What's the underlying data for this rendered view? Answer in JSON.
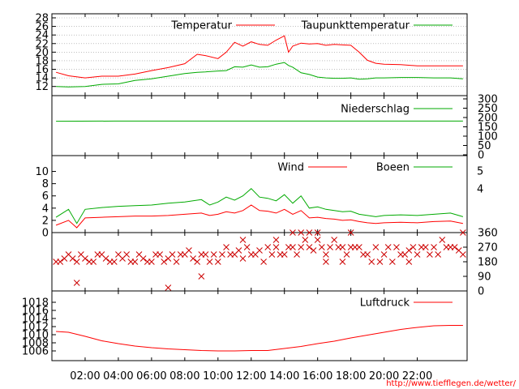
{
  "chart_data": [
    {
      "type": "line",
      "panel": "temperature",
      "ylim": [
        11,
        28
      ],
      "yticks": [
        12,
        14,
        16,
        18,
        20,
        22,
        24,
        26,
        28
      ],
      "grid": "horizontal dotted",
      "legend_position": "top",
      "x": [
        0.25,
        1,
        2,
        3,
        4,
        5,
        6,
        7,
        8,
        8.75,
        9.25,
        10,
        10.5,
        11,
        11.5,
        12,
        12.5,
        13,
        13.5,
        14,
        14.25,
        14.5,
        15,
        15.5,
        16,
        16.5,
        17,
        17.5,
        18,
        18.5,
        19,
        19.5,
        20,
        21,
        22,
        23,
        24,
        24.75
      ],
      "series": [
        {
          "name": "Temperatur",
          "color": "#ff0000",
          "values": [
            15.3,
            14.5,
            14.0,
            14.4,
            14.4,
            14.9,
            15.7,
            16.4,
            17.3,
            19.5,
            19.2,
            18.5,
            20.0,
            22.3,
            21.4,
            22.4,
            21.8,
            21.6,
            22.8,
            23.8,
            20.0,
            21.4,
            22.1,
            21.9,
            22.0,
            21.6,
            21.8,
            21.7,
            21.6,
            20.0,
            18.1,
            17.4,
            17.2,
            17.1,
            16.8,
            16.8,
            16.8,
            16.8
          ]
        },
        {
          "name": "Taupunkttemperatur",
          "color": "#00aa00",
          "values": [
            12.0,
            11.9,
            12.0,
            12.5,
            12.6,
            13.4,
            13.8,
            14.4,
            15.0,
            15.3,
            15.4,
            15.6,
            15.7,
            16.6,
            16.5,
            17.0,
            16.5,
            16.6,
            17.2,
            17.6,
            16.9,
            16.5,
            15.2,
            14.8,
            14.2,
            14.0,
            13.9,
            13.9,
            14.0,
            13.7,
            13.8,
            14.0,
            14.0,
            14.1,
            14.1,
            14.0,
            14.0,
            13.8
          ]
        }
      ]
    },
    {
      "type": "line",
      "panel": "precipitation",
      "ylim": [
        0,
        300
      ],
      "yticks": [
        0,
        50,
        100,
        150,
        200,
        250,
        300
      ],
      "legend_position": "top",
      "x": [
        0.25,
        3.75,
        24.75
      ],
      "series": [
        {
          "name": "Niederschlag",
          "color": "#00aa00",
          "values": [
            180,
            181,
            181
          ]
        }
      ]
    },
    {
      "type": "line",
      "panel": "wind",
      "ylim": [
        0,
        11
      ],
      "yticks": [
        0,
        2,
        4,
        6,
        8,
        10
      ],
      "right_ticks": [
        "4",
        "5"
      ],
      "legend_position": "top",
      "x": [
        0.25,
        1,
        1.5,
        2,
        3,
        4,
        5,
        6,
        7,
        8,
        9,
        9.5,
        10,
        10.5,
        11,
        11.5,
        12,
        12.5,
        13,
        13.5,
        14,
        14.5,
        15,
        15.5,
        16,
        16.5,
        17,
        17.5,
        18,
        18.5,
        19,
        19.5,
        20,
        21,
        22,
        23,
        24,
        24.75
      ],
      "series": [
        {
          "name": "Wind",
          "color": "#ff0000",
          "values": [
            1.2,
            2.0,
            0.8,
            2.4,
            2.5,
            2.6,
            2.7,
            2.7,
            2.8,
            3.0,
            3.2,
            2.8,
            3.0,
            3.4,
            3.2,
            3.6,
            4.5,
            3.6,
            3.5,
            3.2,
            3.8,
            3.0,
            3.6,
            2.4,
            2.5,
            2.3,
            2.2,
            2.0,
            2.1,
            1.8,
            1.6,
            1.5,
            1.6,
            1.7,
            1.6,
            1.8,
            1.9,
            1.5
          ]
        },
        {
          "name": "Boeen",
          "color": "#00aa00",
          "values": [
            2.5,
            3.8,
            1.5,
            3.8,
            4.1,
            4.3,
            4.4,
            4.5,
            4.8,
            5.0,
            5.4,
            4.5,
            5.0,
            5.8,
            5.3,
            6.0,
            7.2,
            5.8,
            5.6,
            5.2,
            6.2,
            4.8,
            6.0,
            4.0,
            4.2,
            3.8,
            3.6,
            3.4,
            3.5,
            3.0,
            2.8,
            2.6,
            2.8,
            2.9,
            2.8,
            3.0,
            3.2,
            2.6
          ]
        }
      ]
    },
    {
      "type": "scatter",
      "panel": "wind-direction",
      "ylim": [
        0,
        360
      ],
      "right_ticks": [
        "0",
        "90",
        "180",
        "270",
        "360"
      ],
      "x": [
        0.25,
        0.5,
        0.75,
        1,
        1.25,
        1.5,
        1.75,
        2,
        2.25,
        2.5,
        2.75,
        3,
        3.25,
        3.5,
        3.75,
        4,
        4.25,
        4.5,
        4.75,
        5,
        5.25,
        5.5,
        5.75,
        6,
        6.25,
        6.5,
        6.75,
        7,
        7.25,
        7.5,
        7.75,
        8,
        8.25,
        8.5,
        8.75,
        9,
        9.25,
        9.5,
        9.75,
        10,
        10.25,
        10.5,
        10.75,
        11,
        11.25,
        11.5,
        11.75,
        12,
        12.25,
        12.5,
        12.75,
        13,
        13.25,
        13.5,
        13.75,
        14,
        14.25,
        14.5,
        14.75,
        15,
        15.25,
        15.5,
        15.75,
        16,
        16.25,
        16.5,
        16.75,
        17,
        17.25,
        17.5,
        17.75,
        18,
        18.25,
        18.5,
        18.75,
        19,
        19.25,
        19.5,
        19.75,
        20,
        20.25,
        20.5,
        20.75,
        21,
        21.25,
        21.5,
        21.75,
        22,
        22.25,
        22.5,
        22.75,
        23,
        23.25,
        23.5,
        23.75,
        24,
        24.25,
        24.5,
        24.75,
        1.5,
        7.0,
        14.5,
        15.0,
        15.5,
        16.0,
        18.0,
        24.75,
        9.0,
        11.5,
        13.5,
        16.5,
        17.5,
        21.5
      ],
      "series": [
        {
          "name": "",
          "color": "#cc0000",
          "values": [
            180,
            180,
            200,
            225,
            200,
            180,
            225,
            200,
            180,
            180,
            225,
            225,
            200,
            180,
            180,
            225,
            200,
            225,
            180,
            180,
            225,
            200,
            180,
            180,
            225,
            225,
            180,
            200,
            225,
            180,
            225,
            225,
            250,
            200,
            180,
            225,
            225,
            180,
            225,
            180,
            225,
            270,
            225,
            225,
            250,
            200,
            270,
            225,
            225,
            250,
            180,
            270,
            225,
            270,
            225,
            225,
            270,
            270,
            225,
            270,
            315,
            270,
            250,
            315,
            270,
            225,
            270,
            315,
            270,
            270,
            225,
            270,
            270,
            270,
            225,
            225,
            180,
            270,
            180,
            225,
            270,
            180,
            270,
            225,
            225,
            250,
            270,
            225,
            270,
            270,
            225,
            270,
            225,
            315,
            270,
            270,
            270,
            250,
            225,
            50,
            20,
            360,
            360,
            360,
            360,
            360,
            360,
            90,
            315,
            315,
            180,
            180,
            180
          ]
        }
      ]
    },
    {
      "type": "line",
      "panel": "pressure",
      "ylim": [
        1005,
        1019
      ],
      "yticks": [
        1006,
        1008,
        1010,
        1012,
        1014,
        1016,
        1018
      ],
      "legend_position": "top",
      "x": [
        0.25,
        1,
        2,
        3,
        4,
        5,
        6,
        7,
        8,
        9,
        10,
        11,
        12,
        13,
        14,
        15,
        16,
        17,
        18,
        19,
        20,
        21,
        22,
        23,
        24,
        24.75
      ],
      "series": [
        {
          "name": "Luftdruck",
          "color": "#ff0000",
          "values": [
            1010.8,
            1010.6,
            1009.6,
            1008.5,
            1007.8,
            1007.2,
            1006.8,
            1006.5,
            1006.3,
            1006.1,
            1006.0,
            1006.0,
            1006.1,
            1006.1,
            1006.6,
            1007.1,
            1007.8,
            1008.4,
            1009.2,
            1009.9,
            1010.6,
            1011.3,
            1011.8,
            1012.2,
            1012.3,
            1012.3
          ]
        }
      ]
    }
  ],
  "x_axis": {
    "xlim": [
      0,
      25
    ],
    "tick_positions": [
      2,
      4,
      6,
      8,
      10,
      12,
      14,
      16,
      18,
      20,
      22
    ],
    "tick_labels": [
      "02:00",
      "04:00",
      "06:00",
      "08:00",
      "10:00",
      "12:00",
      "14:00",
      "16:00",
      "18:00",
      "20:00",
      "22:00"
    ]
  },
  "credit": "http://www.tiefflegen.de/wetter/"
}
